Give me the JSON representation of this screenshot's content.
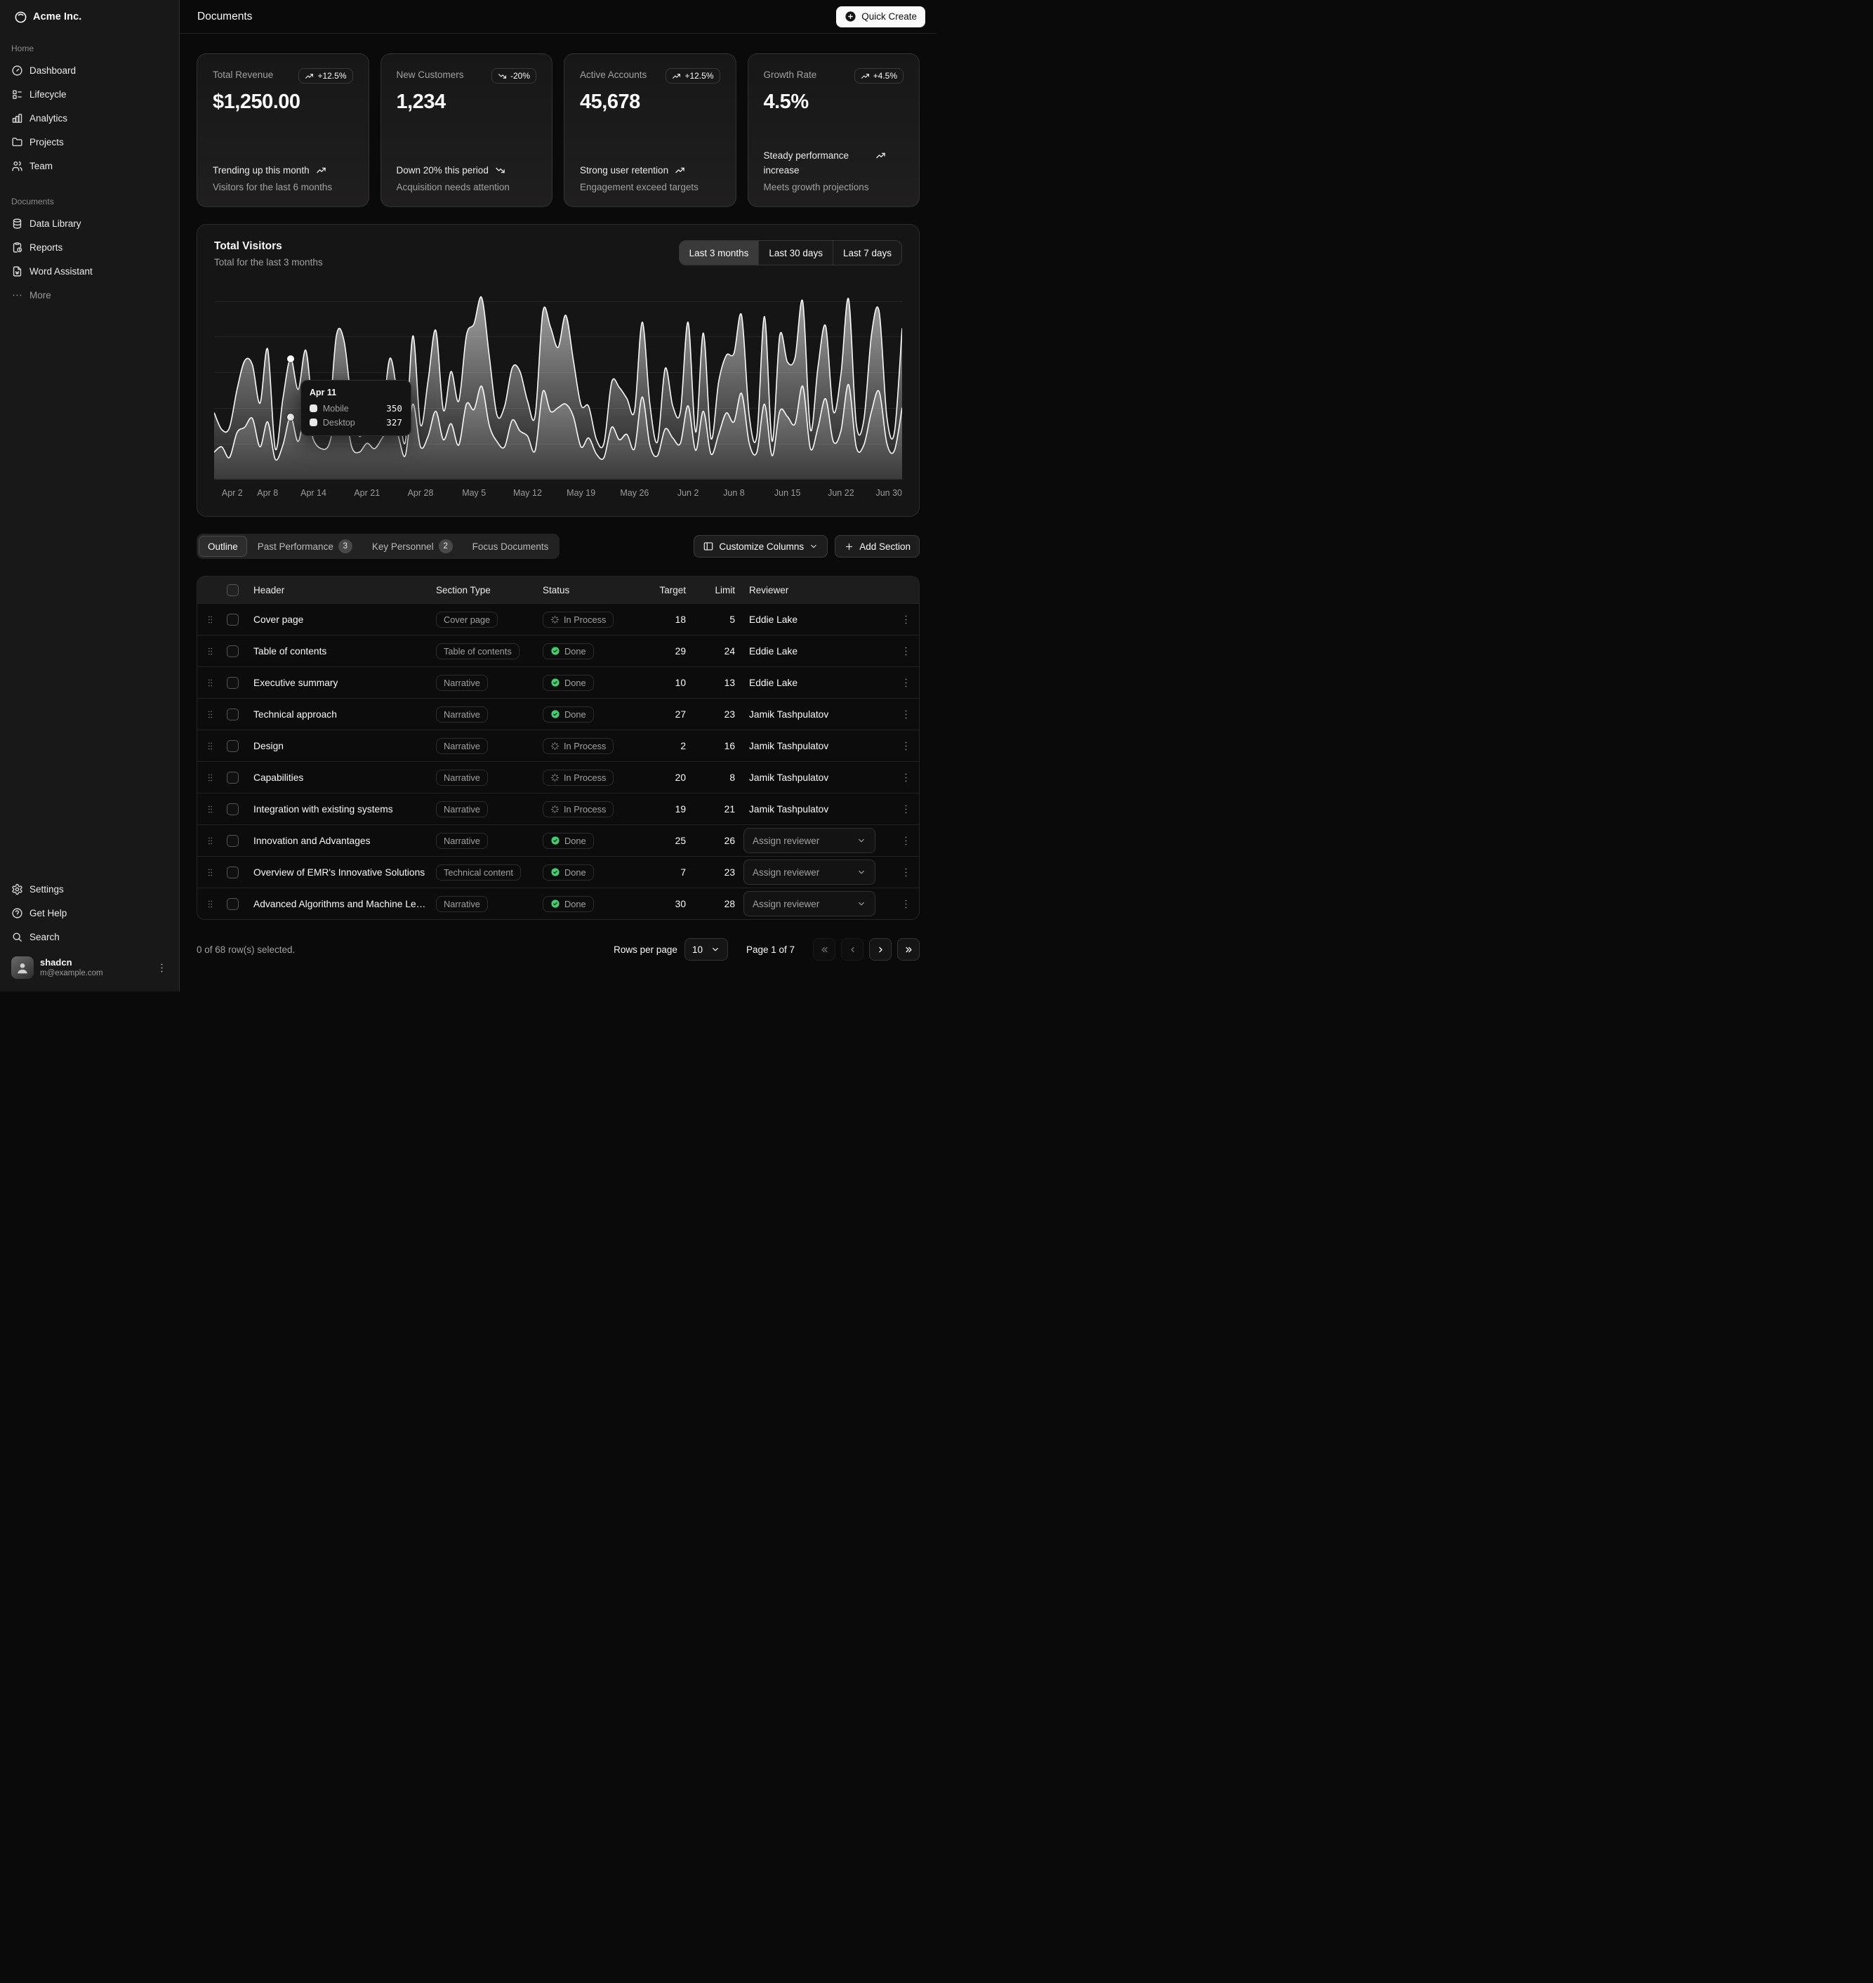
{
  "app": {
    "name": "Acme Inc."
  },
  "header": {
    "title": "Documents",
    "quick_create": "Quick Create"
  },
  "sidebar": {
    "groups": [
      {
        "label": "Home",
        "items": [
          {
            "icon": "dashboard",
            "label": "Dashboard"
          },
          {
            "icon": "lifecycle",
            "label": "Lifecycle"
          },
          {
            "icon": "analytics",
            "label": "Analytics"
          },
          {
            "icon": "folder",
            "label": "Projects"
          },
          {
            "icon": "team",
            "label": "Team"
          }
        ]
      },
      {
        "label": "Documents",
        "items": [
          {
            "icon": "database",
            "label": "Data Library"
          },
          {
            "icon": "report",
            "label": "Reports"
          },
          {
            "icon": "word",
            "label": "Word Assistant"
          },
          {
            "icon": "dots",
            "label": "More",
            "muted": true
          }
        ]
      }
    ],
    "footer_items": [
      {
        "icon": "settings",
        "label": "Settings"
      },
      {
        "icon": "help",
        "label": "Get Help"
      },
      {
        "icon": "search",
        "label": "Search"
      }
    ],
    "user": {
      "name": "shadcn",
      "email": "m@example.com"
    }
  },
  "cards": [
    {
      "title": "Total Revenue",
      "value": "$1,250.00",
      "badge": "+12.5%",
      "badge_dir": "up",
      "foot_title": "Trending up this month",
      "foot_dir": "up",
      "foot_desc": "Visitors for the last 6 months"
    },
    {
      "title": "New Customers",
      "value": "1,234",
      "badge": "-20%",
      "badge_dir": "down",
      "foot_title": "Down 20% this period",
      "foot_dir": "down",
      "foot_desc": "Acquisition needs attention"
    },
    {
      "title": "Active Accounts",
      "value": "45,678",
      "badge": "+12.5%",
      "badge_dir": "up",
      "foot_title": "Strong user retention",
      "foot_dir": "up",
      "foot_desc": "Engagement exceed targets"
    },
    {
      "title": "Growth Rate",
      "value": "4.5%",
      "badge": "+4.5%",
      "badge_dir": "up",
      "foot_title": "Steady performance increase",
      "foot_dir": "up",
      "foot_desc": "Meets growth projections"
    }
  ],
  "chart": {
    "title": "Total Visitors",
    "subtitle": "Total for the last 3 months",
    "ranges": [
      "Last 3 months",
      "Last 30 days",
      "Last 7 days"
    ],
    "active_range": 0,
    "tooltip": {
      "title": "Apr 11",
      "index": 10,
      "rows": [
        {
          "label": "Mobile",
          "value": "350"
        },
        {
          "label": "Desktop",
          "value": "327"
        }
      ]
    }
  },
  "chart_data": {
    "type": "area",
    "stacked": true,
    "title": "Total Visitors",
    "x_start": "Apr 1",
    "x_end": "Jun 30",
    "ylim": [
      0,
      1100
    ],
    "grid_values": [
      200,
      400,
      600,
      800,
      1000
    ],
    "tick_labels": [
      {
        "label": "Apr 2",
        "i": 1
      },
      {
        "label": "Apr 8",
        "i": 7
      },
      {
        "label": "Apr 14",
        "i": 13
      },
      {
        "label": "Apr 21",
        "i": 20
      },
      {
        "label": "Apr 28",
        "i": 27
      },
      {
        "label": "May 5",
        "i": 34
      },
      {
        "label": "May 12",
        "i": 41
      },
      {
        "label": "May 19",
        "i": 48
      },
      {
        "label": "May 26",
        "i": 55
      },
      {
        "label": "Jun 2",
        "i": 62
      },
      {
        "label": "Jun 8",
        "i": 68
      },
      {
        "label": "Jun 15",
        "i": 75
      },
      {
        "label": "Jun 22",
        "i": 82
      },
      {
        "label": "Jun 30",
        "i": 90
      }
    ],
    "series": [
      {
        "name": "Mobile",
        "values": [
          150,
          180,
          120,
          260,
          290,
          340,
          180,
          320,
          110,
          190,
          350,
          210,
          380,
          220,
          170,
          190,
          360,
          410,
          180,
          150,
          200,
          170,
          230,
          290,
          250,
          130,
          420,
          180,
          240,
          380,
          220,
          310,
          190,
          420,
          390,
          520,
          300,
          210,
          180,
          330,
          270,
          240,
          160,
          490,
          380,
          400,
          420,
          350,
          180,
          230,
          140,
          120,
          290,
          220,
          250,
          170,
          460,
          190,
          130,
          280,
          230,
          200,
          410,
          160,
          380,
          140,
          250,
          370,
          320,
          480,
          200,
          150,
          420,
          130,
          380,
          350,
          310,
          520,
          170,
          290,
          450,
          210,
          270,
          530,
          180,
          190,
          380,
          490,
          200,
          160,
          400
        ]
      },
      {
        "name": "Desktop",
        "values": [
          222,
          97,
          167,
          242,
          373,
          301,
          245,
          409,
          59,
          261,
          327,
          292,
          342,
          137,
          120,
          138,
          446,
          364,
          243,
          89,
          137,
          224,
          138,
          387,
          215,
          75,
          383,
          122,
          315,
          454,
          165,
          293,
          247,
          385,
          481,
          498,
          388,
          149,
          227,
          293,
          335,
          197,
          197,
          448,
          473,
          338,
          499,
          315,
          235,
          177,
          82,
          81,
          252,
          294,
          201,
          213,
          420,
          233,
          78,
          340,
          178,
          178,
          470,
          103,
          439,
          88,
          294,
          323,
          385,
          438,
          155,
          92,
          492,
          81,
          426,
          307,
          371,
          475,
          107,
          341,
          408,
          169,
          317,
          480,
          132,
          141,
          434,
          448,
          149,
          103,
          446
        ]
      }
    ]
  },
  "tabs": {
    "items": [
      {
        "label": "Outline",
        "active": true
      },
      {
        "label": "Past Performance",
        "count": "3"
      },
      {
        "label": "Key Personnel",
        "count": "2"
      },
      {
        "label": "Focus Documents"
      }
    ],
    "actions": {
      "customize": "Customize Columns",
      "add": "Add Section"
    }
  },
  "table": {
    "columns": [
      "Header",
      "Section Type",
      "Status",
      "Target",
      "Limit",
      "Reviewer"
    ],
    "assign_label": "Assign reviewer",
    "rows": [
      {
        "header": "Cover page",
        "type": "Cover page",
        "status": "In Process",
        "target": "18",
        "limit": "5",
        "reviewer": "Eddie Lake"
      },
      {
        "header": "Table of contents",
        "type": "Table of contents",
        "status": "Done",
        "target": "29",
        "limit": "24",
        "reviewer": "Eddie Lake"
      },
      {
        "header": "Executive summary",
        "type": "Narrative",
        "status": "Done",
        "target": "10",
        "limit": "13",
        "reviewer": "Eddie Lake"
      },
      {
        "header": "Technical approach",
        "type": "Narrative",
        "status": "Done",
        "target": "27",
        "limit": "23",
        "reviewer": "Jamik Tashpulatov"
      },
      {
        "header": "Design",
        "type": "Narrative",
        "status": "In Process",
        "target": "2",
        "limit": "16",
        "reviewer": "Jamik Tashpulatov"
      },
      {
        "header": "Capabilities",
        "type": "Narrative",
        "status": "In Process",
        "target": "20",
        "limit": "8",
        "reviewer": "Jamik Tashpulatov"
      },
      {
        "header": "Integration with existing systems",
        "type": "Narrative",
        "status": "In Process",
        "target": "19",
        "limit": "21",
        "reviewer": "Jamik Tashpulatov"
      },
      {
        "header": "Innovation and Advantages",
        "type": "Narrative",
        "status": "Done",
        "target": "25",
        "limit": "26",
        "reviewer": null
      },
      {
        "header": "Overview of EMR's Innovative Solutions",
        "type": "Technical content",
        "status": "Done",
        "target": "7",
        "limit": "23",
        "reviewer": null
      },
      {
        "header": "Advanced Algorithms and Machine Learning",
        "type": "Narrative",
        "status": "Done",
        "target": "30",
        "limit": "28",
        "reviewer": null
      }
    ]
  },
  "table_footer": {
    "selected": "0 of 68 row(s) selected.",
    "rows_per_page_label": "Rows per page",
    "rows_per_page_value": "10",
    "page": "Page 1 of 7",
    "buttons": [
      {
        "icon": "chevs_left",
        "disabled": true,
        "name": "first-page-button"
      },
      {
        "icon": "chev_left",
        "disabled": true,
        "name": "prev-page-button"
      },
      {
        "icon": "chev_right",
        "disabled": false,
        "name": "next-page-button"
      },
      {
        "icon": "chevs_right",
        "disabled": false,
        "name": "last-page-button"
      }
    ]
  },
  "colors": {
    "background": "#0a0a0a",
    "sidebar": "#181818",
    "card": "#171717",
    "border": "rgba(255,255,255,0.10)",
    "muted_text": "#a1a1a1",
    "text": "#fafafa",
    "success_green": "#3ecf6e",
    "series_stroke": "#fafafa"
  }
}
